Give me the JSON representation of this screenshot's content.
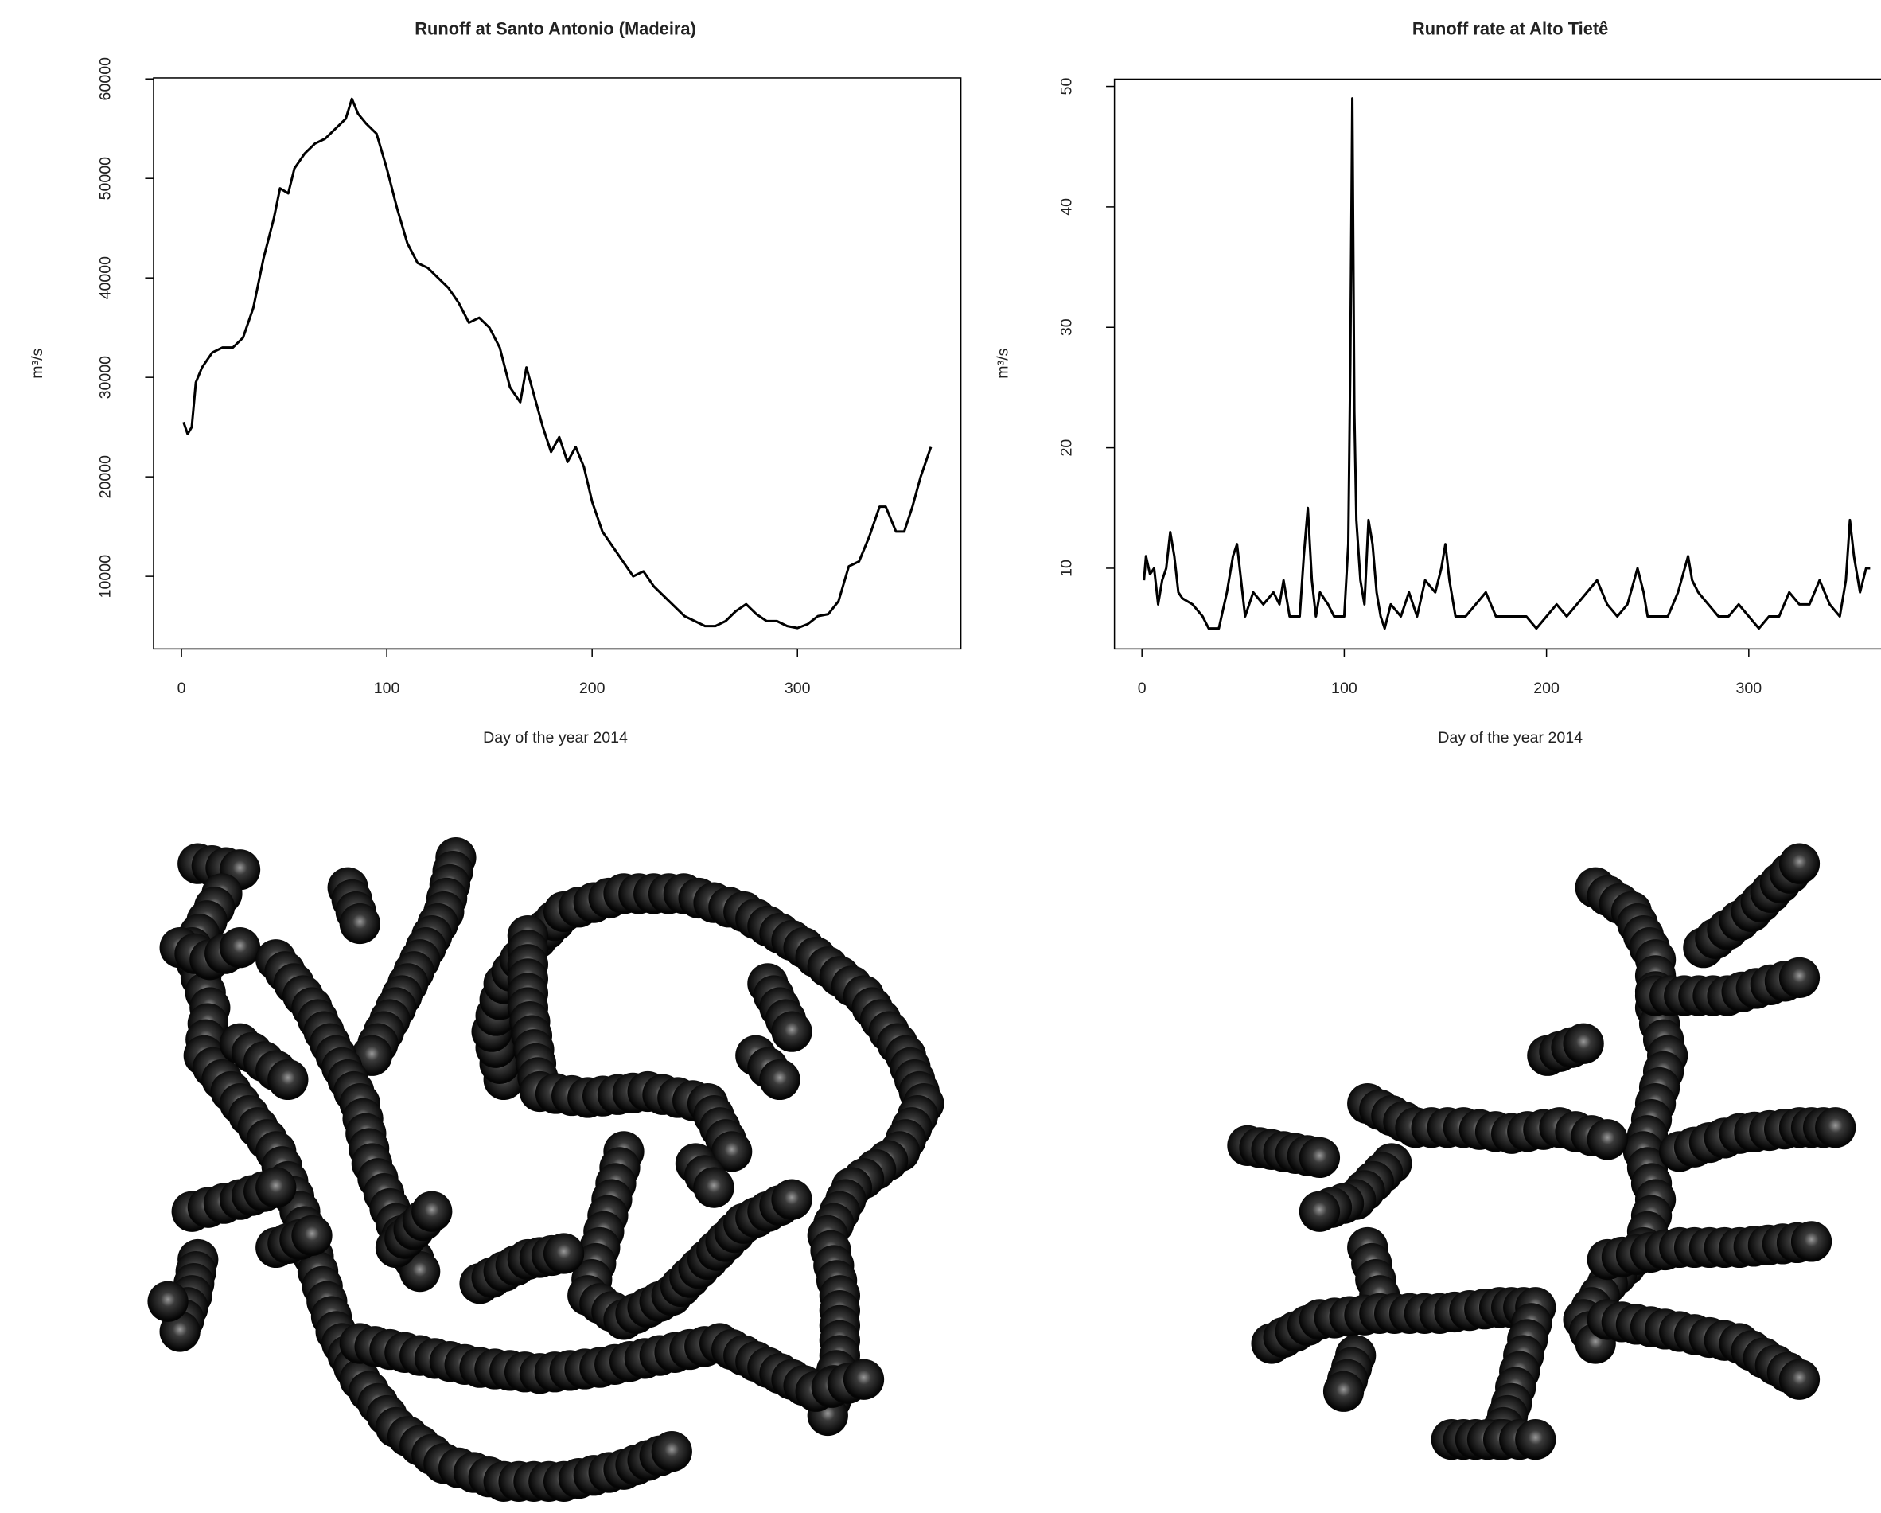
{
  "chart_data": [
    {
      "type": "line",
      "title": "Runoff at Santo Antonio (Madeira)",
      "x_label": "Day of the year 2014",
      "y_label": "m³/s",
      "xlim": [
        -13.6,
        379.6
      ],
      "xticks": [
        0,
        100,
        200,
        300
      ],
      "ylim": [
        2700,
        60100
      ],
      "yticks": [
        10000,
        20000,
        30000,
        40000,
        50000,
        60000
      ],
      "color": "#000000",
      "x": [
        1,
        3,
        5,
        7,
        10,
        15,
        20,
        25,
        30,
        35,
        40,
        45,
        48,
        52,
        55,
        60,
        65,
        70,
        75,
        80,
        83,
        86,
        90,
        95,
        100,
        105,
        110,
        115,
        120,
        125,
        130,
        135,
        140,
        145,
        150,
        155,
        160,
        165,
        168,
        172,
        176,
        180,
        184,
        188,
        192,
        196,
        200,
        205,
        210,
        215,
        220,
        225,
        230,
        235,
        240,
        245,
        250,
        255,
        260,
        265,
        270,
        275,
        280,
        285,
        290,
        295,
        300,
        305,
        310,
        315,
        320,
        325,
        330,
        335,
        340,
        343,
        348,
        352,
        356,
        360,
        365
      ],
      "values": [
        25500,
        24300,
        25000,
        29500,
        31000,
        32500,
        33000,
        33000,
        34000,
        37000,
        42000,
        46000,
        49000,
        48500,
        51000,
        52500,
        53500,
        54000,
        55000,
        56000,
        58000,
        56500,
        55500,
        54500,
        51000,
        47000,
        43500,
        41500,
        41000,
        40000,
        39000,
        37500,
        35500,
        36000,
        35000,
        33000,
        29000,
        27500,
        31000,
        28000,
        25000,
        22500,
        24000,
        21500,
        23000,
        21000,
        17500,
        14500,
        13000,
        11500,
        10000,
        10500,
        9000,
        8000,
        7000,
        6000,
        5500,
        5000,
        5000,
        5500,
        6500,
        7200,
        6200,
        5500,
        5500,
        5000,
        4800,
        5200,
        6000,
        6200,
        7500,
        11000,
        11500,
        14000,
        17000,
        17000,
        14500,
        14500,
        17000,
        20000,
        23000
      ]
    },
    {
      "type": "line",
      "title": "Runoff rate at Alto Tietê",
      "x_label": "Day of the year 2014",
      "y_label": "m³/s",
      "xlim": [
        -13.6,
        379.6
      ],
      "xticks": [
        0,
        100,
        200,
        300
      ],
      "ylim": [
        3.3,
        50.6
      ],
      "yticks": [
        10,
        20,
        30,
        40,
        50
      ],
      "color": "#000000",
      "x": [
        1,
        2,
        4,
        6,
        8,
        10,
        12,
        14,
        16,
        18,
        20,
        25,
        30,
        33,
        38,
        42,
        45,
        47,
        49,
        51,
        55,
        60,
        65,
        68,
        70,
        73,
        78,
        80,
        82,
        84,
        86,
        88,
        92,
        95,
        100,
        102,
        103,
        104,
        105,
        106,
        108,
        110,
        112,
        114,
        116,
        118,
        120,
        123,
        128,
        132,
        136,
        140,
        145,
        148,
        150,
        152,
        155,
        160,
        165,
        170,
        175,
        180,
        185,
        190,
        195,
        200,
        205,
        210,
        215,
        220,
        225,
        230,
        235,
        240,
        245,
        248,
        250,
        255,
        260,
        265,
        270,
        272,
        275,
        280,
        285,
        290,
        295,
        300,
        305,
        310,
        315,
        320,
        325,
        330,
        335,
        340,
        345,
        348,
        350,
        352,
        355,
        358,
        360
      ],
      "values": [
        9,
        11,
        9.5,
        10,
        7,
        9,
        10,
        13,
        11,
        8,
        7.5,
        7,
        6,
        5,
        5,
        8,
        11,
        12,
        9,
        6,
        8,
        7,
        8,
        7,
        9,
        6,
        6,
        11,
        15,
        9,
        6,
        8,
        7,
        6,
        6,
        12,
        27,
        49,
        23,
        14,
        9,
        7,
        14,
        12,
        8,
        6,
        5,
        7,
        6,
        8,
        6,
        9,
        8,
        10,
        12,
        9,
        6,
        6,
        7,
        8,
        6,
        6,
        6,
        6,
        5,
        6,
        7,
        6,
        7,
        8,
        9,
        7,
        6,
        7,
        10,
        8,
        6,
        6,
        6,
        8,
        11,
        9,
        8,
        7,
        6,
        6,
        7,
        6,
        5,
        6,
        6,
        8,
        7,
        7,
        9,
        7,
        6,
        9,
        14,
        11,
        8,
        10,
        10
      ]
    }
  ]
}
